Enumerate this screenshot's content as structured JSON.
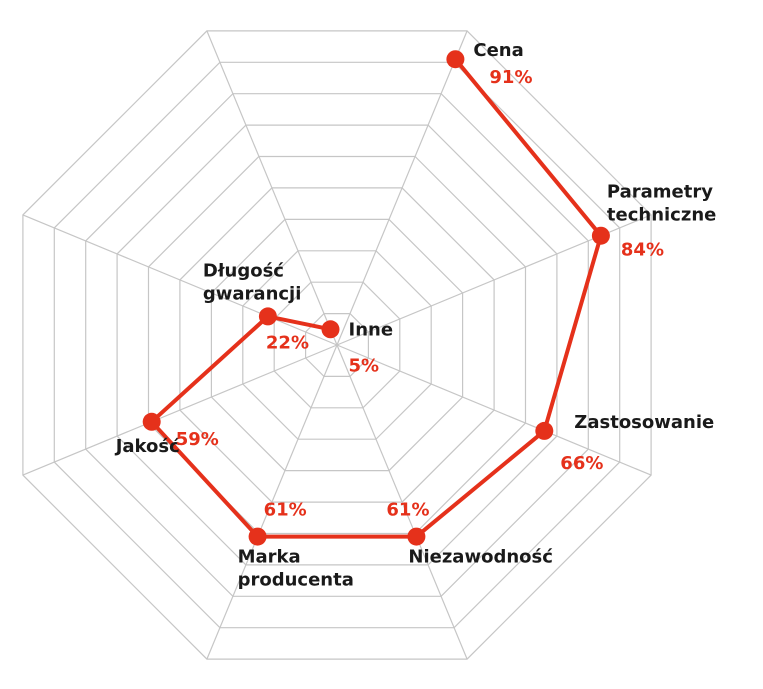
{
  "chart_data": {
    "type": "radar",
    "categories": [
      "Cena",
      "Parametry techniczne",
      "Zastosowanie",
      "Niezawodność",
      "Marka producenta",
      "Jakość",
      "Długość gwarancji",
      "Inne"
    ],
    "label_lines": [
      [
        "Cena"
      ],
      [
        "Parametry",
        "techniczne"
      ],
      [
        "Zastosowanie"
      ],
      [
        "Niezawodność"
      ],
      [
        "Marka",
        "producenta"
      ],
      [
        "Jakość"
      ],
      [
        "Długość",
        "gwarancji"
      ],
      [
        "Inne"
      ]
    ],
    "values": [
      91,
      84,
      66,
      61,
      61,
      59,
      22,
      5
    ],
    "value_labels": [
      "91%",
      "84%",
      "66%",
      "61%",
      "61%",
      "59%",
      "22%",
      "5%"
    ],
    "rlim": [
      0,
      100
    ],
    "grid": true,
    "series_color": "#e5311b"
  }
}
